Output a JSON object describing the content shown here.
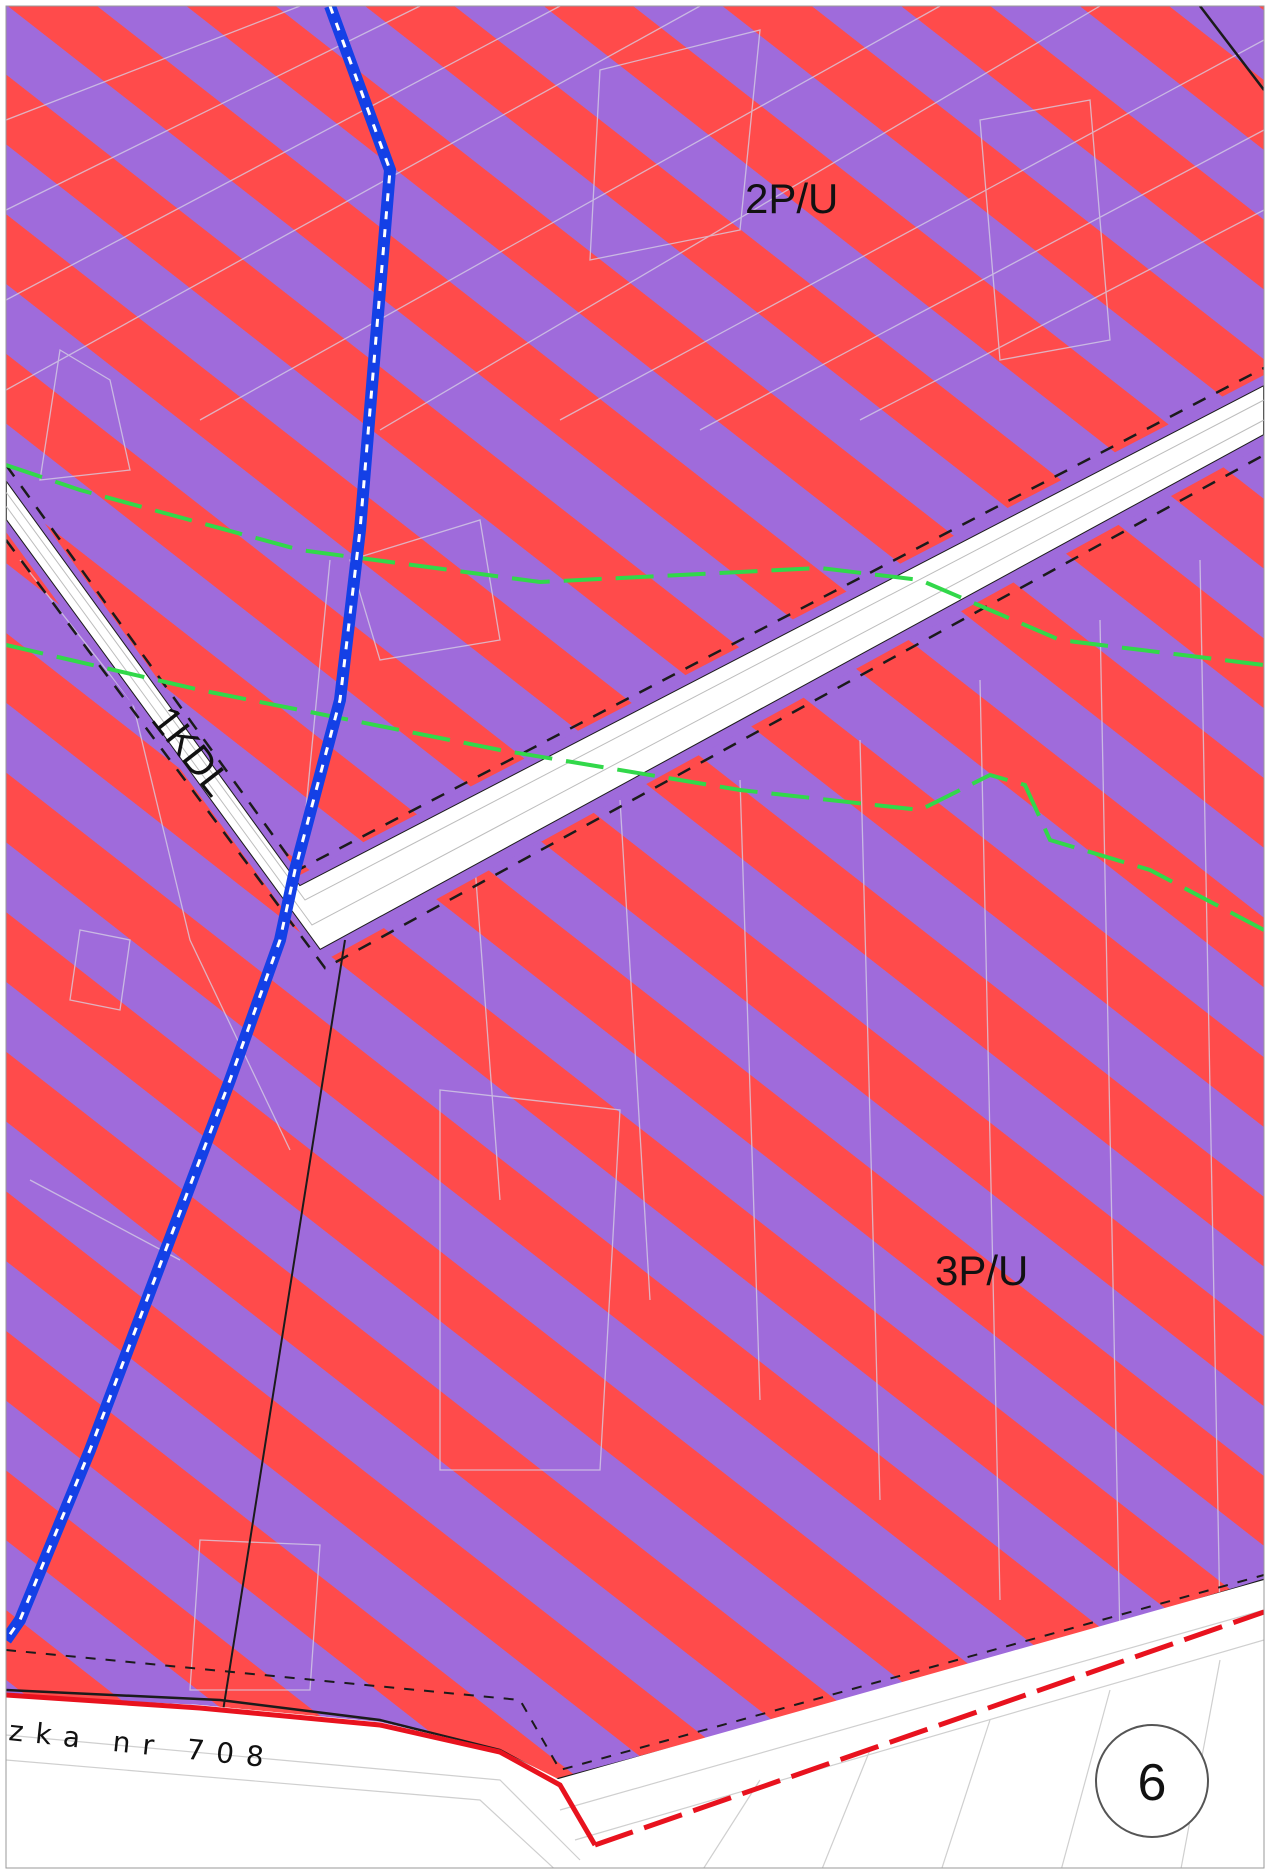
{
  "zones": [
    {
      "id": "2P/U"
    },
    {
      "id": "3P/U"
    }
  ],
  "roads": [
    {
      "id": "1KDL"
    }
  ],
  "street": {
    "label": "zka nr 708"
  },
  "sheet": {
    "number": "6"
  },
  "colors": {
    "stripe_red": "#ff4b4b",
    "stripe_purple": "#9f6bdb",
    "road_white": "#ffffff",
    "boundary_black": "#1b1b1b",
    "pipeline_blue": "#1440e6",
    "dashed_green": "#32d84a",
    "edge_red": "#e8121e",
    "parcel_lines": "#d8d3e6"
  }
}
